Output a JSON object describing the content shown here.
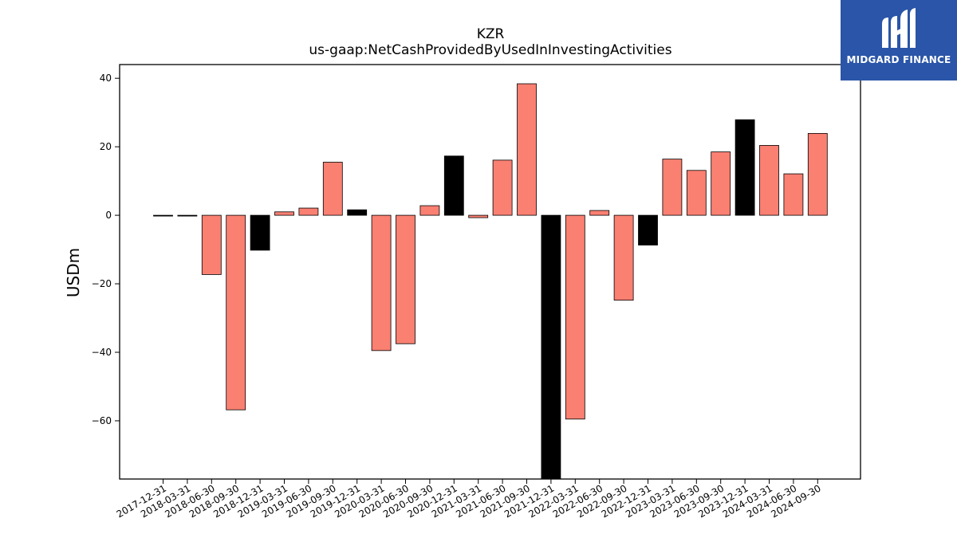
{
  "logo": {
    "text": "MIDGARD FINANCE",
    "icon": "midgard-m-icon",
    "background": "#2a55a8"
  },
  "chart_data": {
    "type": "bar",
    "title": "KZR",
    "subtitle": "us-gaap:NetCashProvidedByUsedInInvestingActivities",
    "xlabel": "",
    "ylabel": "USDm",
    "ylim": [
      -77,
      44
    ],
    "yticks": [
      40,
      20,
      0,
      -20,
      -40,
      -60
    ],
    "ytick_labels": [
      "40",
      "20",
      "0",
      "−20",
      "−40",
      "−60"
    ],
    "grid": false,
    "colors": {
      "default": "#fa8072",
      "highlight": "#000000"
    },
    "categories": [
      "2017-12-31",
      "2018-03-31",
      "2018-06-30",
      "2018-09-30",
      "2018-12-31",
      "2019-03-31",
      "2019-06-30",
      "2019-09-30",
      "2019-12-31",
      "2020-03-31",
      "2020-06-30",
      "2020-09-30",
      "2020-12-31",
      "2021-03-31",
      "2021-06-30",
      "2021-09-30",
      "2021-12-31",
      "2022-03-31",
      "2022-06-30",
      "2022-09-30",
      "2022-12-31",
      "2023-03-31",
      "2023-06-30",
      "2023-09-30",
      "2023-12-31",
      "2024-03-31",
      "2024-06-30",
      "2024-09-30"
    ],
    "values": [
      -0.1,
      -0.1,
      -17.3,
      -56.8,
      -10.2,
      1.0,
      2.1,
      15.5,
      1.6,
      -39.5,
      -37.5,
      2.8,
      17.3,
      -0.7,
      16.1,
      38.4,
      -77.0,
      -59.5,
      1.4,
      -24.8,
      -8.7,
      16.4,
      13.1,
      18.5,
      27.9,
      20.4,
      12.1,
      23.9
    ],
    "highlight": [
      true,
      true,
      false,
      false,
      true,
      false,
      false,
      false,
      true,
      false,
      false,
      false,
      true,
      false,
      false,
      false,
      true,
      false,
      false,
      false,
      true,
      false,
      false,
      false,
      true,
      false,
      false,
      false
    ]
  }
}
